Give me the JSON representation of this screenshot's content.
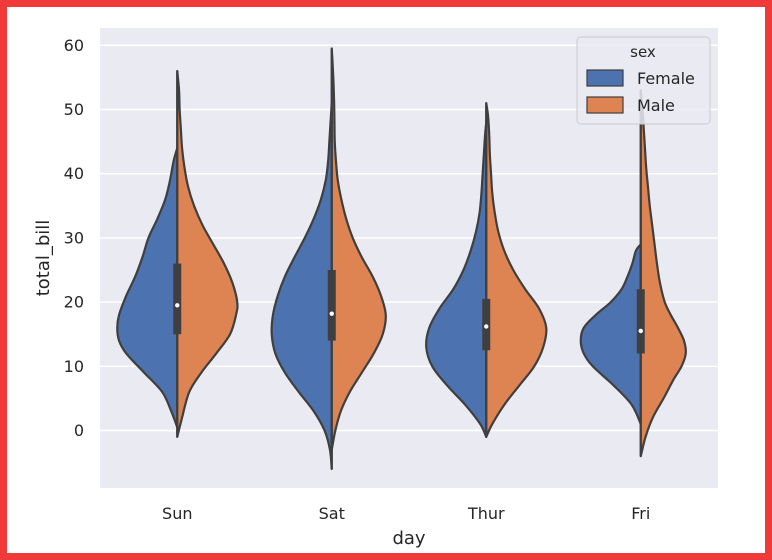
{
  "chart_data": {
    "type": "violin",
    "split": true,
    "title": "",
    "xlabel": "day",
    "ylabel": "total_bill",
    "categories": [
      "Sun",
      "Sat",
      "Thur",
      "Fri"
    ],
    "yticks": [
      0,
      10,
      20,
      30,
      40,
      50,
      60
    ],
    "ylim": [
      -9,
      62
    ],
    "grid": true,
    "legend": {
      "title": "sex",
      "placement": "top-right",
      "entries": [
        {
          "name": "Female",
          "color": "#4c72b0"
        },
        {
          "name": "Male",
          "color": "#dd8452"
        }
      ]
    },
    "colors": {
      "background": "#eaeaf2",
      "grid": "#ffffff",
      "edge": "#3f3f3f",
      "female": "#4c72b0",
      "male": "#dd8452"
    },
    "series": [
      {
        "day": "Sun",
        "female": {
          "density": [
            [
              0.5,
              0
            ],
            [
              3,
              0.1
            ],
            [
              6,
              0.25
            ],
            [
              9,
              0.55
            ],
            [
              12,
              0.85
            ],
            [
              14,
              0.97
            ],
            [
              16,
              1.0
            ],
            [
              18,
              0.97
            ],
            [
              21,
              0.85
            ],
            [
              24,
              0.7
            ],
            [
              27,
              0.58
            ],
            [
              30,
              0.48
            ],
            [
              33,
              0.33
            ],
            [
              36,
              0.2
            ],
            [
              39,
              0.12
            ],
            [
              42,
              0.06
            ],
            [
              44,
              0
            ]
          ],
          "q1": 15,
          "median": 19.5,
          "q3": 26
        },
        "male": {
          "density": [
            [
              -1,
              0
            ],
            [
              2,
              0.08
            ],
            [
              6,
              0.2
            ],
            [
              9,
              0.4
            ],
            [
              12,
              0.65
            ],
            [
              15,
              0.88
            ],
            [
              18,
              0.98
            ],
            [
              20,
              1.0
            ],
            [
              23,
              0.92
            ],
            [
              26,
              0.78
            ],
            [
              29,
              0.6
            ],
            [
              32,
              0.42
            ],
            [
              35,
              0.28
            ],
            [
              38,
              0.18
            ],
            [
              41,
              0.12
            ],
            [
              44,
              0.08
            ],
            [
              47,
              0.06
            ],
            [
              50,
              0.04
            ],
            [
              53,
              0.03
            ],
            [
              56,
              0
            ]
          ],
          "q1": 15,
          "median": 19.5,
          "q3": 26
        }
      },
      {
        "day": "Sat",
        "female": {
          "density": [
            [
              -6,
              0
            ],
            [
              -3,
              0.03
            ],
            [
              0,
              0.12
            ],
            [
              3,
              0.3
            ],
            [
              6,
              0.55
            ],
            [
              9,
              0.78
            ],
            [
              12,
              0.94
            ],
            [
              15,
              1.0
            ],
            [
              18,
              0.98
            ],
            [
              21,
              0.9
            ],
            [
              24,
              0.78
            ],
            [
              27,
              0.62
            ],
            [
              30,
              0.45
            ],
            [
              33,
              0.3
            ],
            [
              36,
              0.18
            ],
            [
              39,
              0.1
            ],
            [
              42,
              0.06
            ],
            [
              45,
              0.04
            ],
            [
              48,
              0.02
            ],
            [
              51,
              0
            ]
          ],
          "q1": 14,
          "median": 18.2,
          "q3": 25
        },
        "male": {
          "density": [
            [
              -3,
              0
            ],
            [
              0,
              0.06
            ],
            [
              3,
              0.15
            ],
            [
              6,
              0.3
            ],
            [
              9,
              0.5
            ],
            [
              12,
              0.7
            ],
            [
              15,
              0.85
            ],
            [
              18,
              0.9
            ],
            [
              21,
              0.82
            ],
            [
              24,
              0.68
            ],
            [
              27,
              0.5
            ],
            [
              30,
              0.35
            ],
            [
              33,
              0.24
            ],
            [
              36,
              0.16
            ],
            [
              39,
              0.1
            ],
            [
              42,
              0.07
            ],
            [
              45,
              0.05
            ],
            [
              48,
              0.045
            ],
            [
              51,
              0.04
            ],
            [
              54,
              0.03
            ],
            [
              57,
              0.015
            ],
            [
              59.5,
              0
            ]
          ],
          "q1": 14,
          "median": 18.2,
          "q3": 25
        }
      },
      {
        "day": "Thur",
        "female": {
          "density": [
            [
              -1,
              0
            ],
            [
              1,
              0.1
            ],
            [
              4,
              0.35
            ],
            [
              7,
              0.65
            ],
            [
              10,
              0.9
            ],
            [
              13,
              1.0
            ],
            [
              16,
              0.95
            ],
            [
              19,
              0.78
            ],
            [
              22,
              0.55
            ],
            [
              25,
              0.38
            ],
            [
              28,
              0.26
            ],
            [
              31,
              0.17
            ],
            [
              34,
              0.11
            ],
            [
              37,
              0.08
            ],
            [
              40,
              0.06
            ],
            [
              43,
              0.04
            ],
            [
              46,
              0.02
            ],
            [
              48,
              0
            ]
          ],
          "q1": 12.5,
          "median": 16.2,
          "q3": 20.5
        },
        "male": {
          "density": [
            [
              -1,
              0
            ],
            [
              1,
              0.1
            ],
            [
              4,
              0.3
            ],
            [
              7,
              0.55
            ],
            [
              10,
              0.8
            ],
            [
              13,
              0.95
            ],
            [
              16,
              1.0
            ],
            [
              19,
              0.88
            ],
            [
              22,
              0.65
            ],
            [
              25,
              0.45
            ],
            [
              28,
              0.3
            ],
            [
              31,
              0.2
            ],
            [
              34,
              0.14
            ],
            [
              37,
              0.1
            ],
            [
              40,
              0.08
            ],
            [
              43,
              0.06
            ],
            [
              46,
              0.05
            ],
            [
              49,
              0.03
            ],
            [
              51,
              0
            ]
          ],
          "q1": 12.5,
          "median": 16.2,
          "q3": 20.5
        }
      },
      {
        "day": "Fri",
        "female": {
          "density": [
            [
              1,
              0
            ],
            [
              4,
              0.15
            ],
            [
              7,
              0.45
            ],
            [
              10,
              0.8
            ],
            [
              12,
              0.95
            ],
            [
              14,
              1.0
            ],
            [
              16,
              0.95
            ],
            [
              18,
              0.75
            ],
            [
              20,
              0.5
            ],
            [
              22,
              0.32
            ],
            [
              24,
              0.22
            ],
            [
              26,
              0.14
            ],
            [
              28,
              0.08
            ],
            [
              29,
              0
            ]
          ],
          "q1": 12,
          "median": 15.5,
          "q3": 22
        },
        "male": {
          "density": [
            [
              -4,
              0
            ],
            [
              -1,
              0.08
            ],
            [
              2,
              0.2
            ],
            [
              5,
              0.38
            ],
            [
              8,
              0.55
            ],
            [
              10,
              0.68
            ],
            [
              12,
              0.75
            ],
            [
              14,
              0.72
            ],
            [
              16,
              0.62
            ],
            [
              18,
              0.5
            ],
            [
              20,
              0.4
            ],
            [
              23,
              0.32
            ],
            [
              26,
              0.27
            ],
            [
              29,
              0.23
            ],
            [
              32,
              0.19
            ],
            [
              35,
              0.15
            ],
            [
              38,
              0.12
            ],
            [
              41,
              0.09
            ],
            [
              44,
              0.07
            ],
            [
              47,
              0.05
            ],
            [
              50,
              0.03
            ],
            [
              53,
              0
            ]
          ],
          "q1": 12,
          "median": 15.5,
          "q3": 22
        }
      }
    ]
  }
}
